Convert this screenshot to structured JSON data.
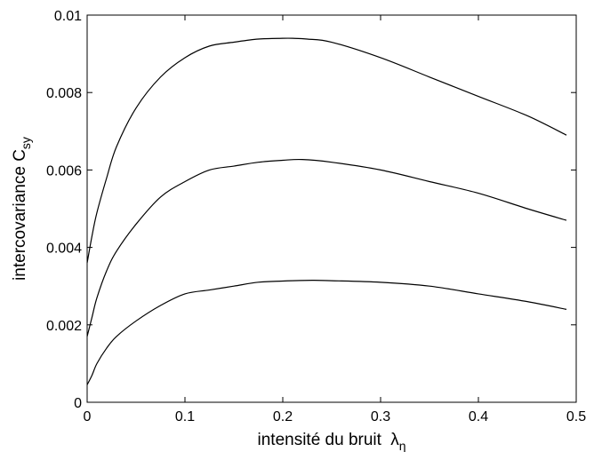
{
  "chart_data": {
    "type": "line",
    "title": "",
    "xlabel": "intensité du bruit",
    "xlabel_symbol": "λ",
    "xlabel_sub": "η",
    "ylabel": "intercovariance C",
    "ylabel_sub": "sy",
    "xlim": [
      0,
      0.5
    ],
    "ylim": [
      0,
      0.01
    ],
    "x_ticks": [
      0,
      0.1,
      0.2,
      0.3,
      0.4,
      0.5
    ],
    "x_tick_labels": [
      "0",
      "0.1",
      "0.2",
      "0.3",
      "0.4",
      "0.5"
    ],
    "y_ticks": [
      0,
      0.002,
      0.004,
      0.006,
      0.008,
      0.01
    ],
    "y_tick_labels": [
      "0",
      "0.002",
      "0.004",
      "0.006",
      "0.008",
      "0.01"
    ],
    "grid": false,
    "legend": "none",
    "series": [
      {
        "color": "#000000",
        "x": [
          0,
          0.005,
          0.01,
          0.02,
          0.03,
          0.05,
          0.075,
          0.1,
          0.125,
          0.15,
          0.175,
          0.2,
          0.21,
          0.225,
          0.25,
          0.3,
          0.35,
          0.4,
          0.45,
          0.49
        ],
        "y": [
          0.0036,
          0.0043,
          0.0049,
          0.0058,
          0.0066,
          0.0076,
          0.0084,
          0.0089,
          0.0092,
          0.0093,
          0.00938,
          0.0094,
          0.0094,
          0.00938,
          0.0093,
          0.0089,
          0.0084,
          0.0079,
          0.0074,
          0.0069
        ]
      },
      {
        "color": "#000000",
        "x": [
          0,
          0.005,
          0.01,
          0.02,
          0.03,
          0.05,
          0.075,
          0.1,
          0.125,
          0.15,
          0.175,
          0.2,
          0.22,
          0.25,
          0.3,
          0.35,
          0.4,
          0.45,
          0.49
        ],
        "y": [
          0.0017,
          0.0022,
          0.0027,
          0.0034,
          0.0039,
          0.0046,
          0.0053,
          0.0057,
          0.006,
          0.0061,
          0.0062,
          0.00625,
          0.00627,
          0.0062,
          0.006,
          0.0057,
          0.0054,
          0.005,
          0.0047
        ]
      },
      {
        "color": "#000000",
        "x": [
          0,
          0.005,
          0.01,
          0.02,
          0.03,
          0.05,
          0.075,
          0.1,
          0.125,
          0.15,
          0.175,
          0.2,
          0.23,
          0.25,
          0.3,
          0.35,
          0.4,
          0.45,
          0.49
        ],
        "y": [
          0.00045,
          0.0007,
          0.001,
          0.0014,
          0.0017,
          0.0021,
          0.0025,
          0.0028,
          0.0029,
          0.003,
          0.0031,
          0.00313,
          0.00315,
          0.00314,
          0.0031,
          0.003,
          0.0028,
          0.0026,
          0.0024
        ]
      }
    ]
  }
}
